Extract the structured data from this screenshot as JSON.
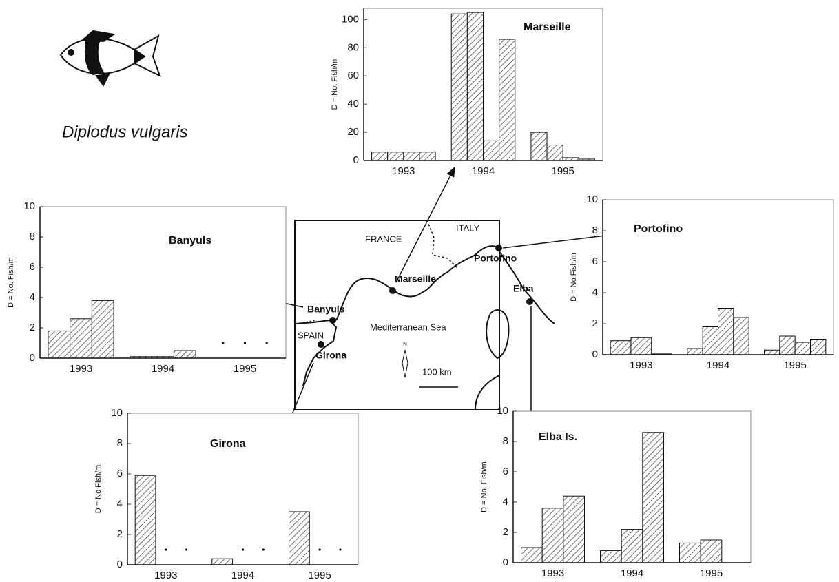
{
  "species": "Diplodus vulgaris",
  "map": {
    "labels": [
      "FRANCE",
      "ITALY",
      "SPAIN",
      "Mediterranean Sea",
      "100 km",
      "N"
    ],
    "sites": [
      "Marseille",
      "Portofino",
      "Elba",
      "Banyuls",
      "Girona"
    ]
  },
  "chart_data": [
    {
      "type": "bar",
      "title": "Marseille",
      "y_label": "D = No. Fish/m",
      "groups": [
        {
          "label": "1993",
          "values": [
            6,
            6,
            6,
            6
          ]
        },
        {
          "label": "1994",
          "values": [
            104,
            105,
            14,
            86
          ]
        },
        {
          "label": "1995",
          "values": [
            20,
            11,
            2,
            1
          ]
        }
      ],
      "ylim": [
        0,
        108
      ],
      "yticks": [
        0,
        20,
        40,
        60,
        80,
        100
      ]
    },
    {
      "type": "bar",
      "title": "Banyuls",
      "y_label": "D = No. Fish/m",
      "groups": [
        {
          "label": "1993",
          "values": [
            1.8,
            2.6,
            3.8
          ]
        },
        {
          "label": "1994",
          "values": [
            0.1,
            0.1,
            0.5
          ]
        },
        {
          "label": "1995",
          "values": [
            null,
            null,
            null
          ]
        }
      ],
      "ylim": [
        0,
        10
      ],
      "yticks": [
        0,
        2,
        4,
        6,
        8,
        10
      ]
    },
    {
      "type": "bar",
      "title": "Portofino",
      "y_label": "D = No  Fish/m",
      "groups": [
        {
          "label": "1993",
          "values": [
            0.9,
            1.1,
            0.05
          ]
        },
        {
          "label": "1994",
          "values": [
            0.4,
            1.8,
            3,
            2.4
          ]
        },
        {
          "label": "1995",
          "values": [
            0.3,
            1.2,
            0.8,
            1
          ]
        }
      ],
      "ylim": [
        0,
        10
      ],
      "yticks": [
        0,
        2,
        4,
        6,
        8,
        10
      ]
    },
    {
      "type": "bar",
      "title": "Girona",
      "y_label": "D = No Fish/m",
      "groups": [
        {
          "label": "1993",
          "values": [
            5.9,
            null,
            null
          ]
        },
        {
          "label": "1994",
          "values": [
            0.4,
            null,
            null
          ]
        },
        {
          "label": "1995",
          "values": [
            3.5,
            null,
            null
          ]
        }
      ],
      "ylim": [
        0,
        10
      ],
      "yticks": [
        0,
        2,
        4,
        6,
        8,
        10
      ]
    },
    {
      "type": "bar",
      "title": "Elba Is.",
      "y_label": "D = No. Fish/m",
      "groups": [
        {
          "label": "1993",
          "values": [
            1,
            3.6,
            4.4
          ]
        },
        {
          "label": "1994",
          "values": [
            0.8,
            2.2,
            8.6
          ]
        },
        {
          "label": "1995",
          "values": [
            1.3,
            1.5
          ]
        }
      ],
      "ylim": [
        0,
        10
      ],
      "yticks": [
        0,
        2,
        4,
        6,
        8,
        10
      ]
    }
  ]
}
